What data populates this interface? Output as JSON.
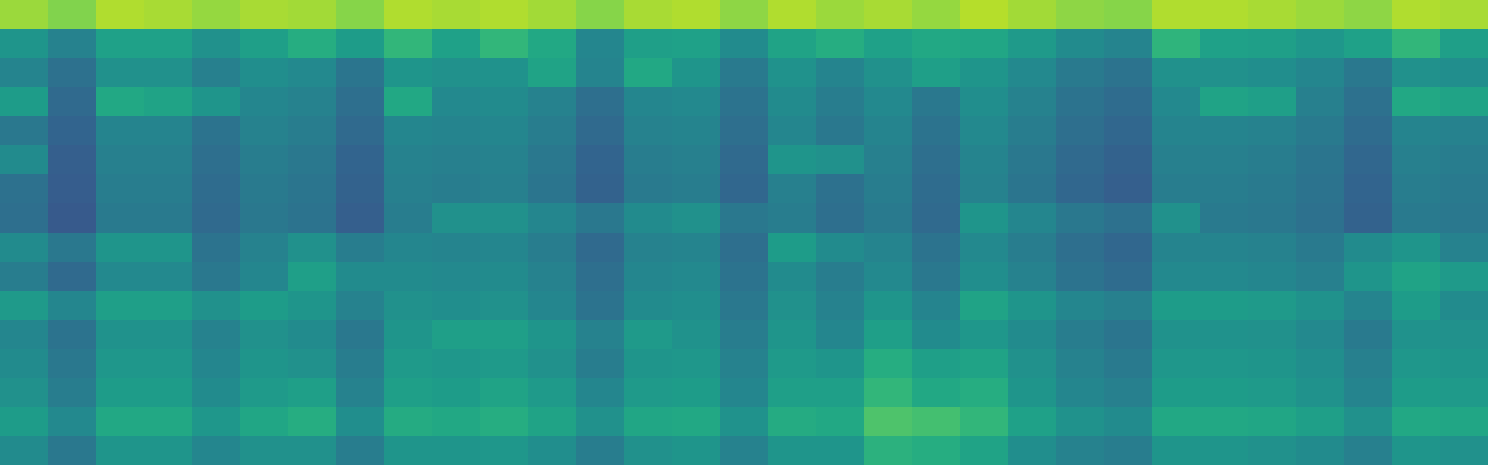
{
  "chart_data": {
    "type": "heatmap",
    "color": "viridis",
    "tick_labels": false,
    "zlim": [
      0,
      1
    ],
    "z": [
      [
        0.85,
        0.81,
        0.88,
        0.87,
        0.84,
        0.87,
        0.86,
        0.82,
        0.88,
        0.87,
        0.88,
        0.86,
        0.82,
        0.87,
        0.88,
        0.83,
        0.88,
        0.85,
        0.87,
        0.84,
        0.89,
        0.86,
        0.83,
        0.82,
        0.88,
        0.88,
        0.87,
        0.85,
        0.83,
        0.88,
        0.87
      ],
      [
        0.52,
        0.44,
        0.57,
        0.57,
        0.5,
        0.56,
        0.62,
        0.55,
        0.66,
        0.57,
        0.66,
        0.6,
        0.46,
        0.56,
        0.57,
        0.48,
        0.58,
        0.62,
        0.57,
        0.6,
        0.59,
        0.54,
        0.48,
        0.45,
        0.65,
        0.57,
        0.56,
        0.53,
        0.57,
        0.66,
        0.56
      ],
      [
        0.45,
        0.37,
        0.5,
        0.5,
        0.43,
        0.49,
        0.47,
        0.39,
        0.52,
        0.5,
        0.51,
        0.58,
        0.45,
        0.6,
        0.52,
        0.41,
        0.51,
        0.45,
        0.5,
        0.56,
        0.52,
        0.47,
        0.41,
        0.38,
        0.5,
        0.5,
        0.49,
        0.46,
        0.4,
        0.5,
        0.49
      ],
      [
        0.55,
        0.34,
        0.6,
        0.58,
        0.52,
        0.46,
        0.44,
        0.36,
        0.6,
        0.47,
        0.48,
        0.44,
        0.36,
        0.46,
        0.47,
        0.38,
        0.48,
        0.42,
        0.47,
        0.4,
        0.49,
        0.44,
        0.38,
        0.35,
        0.47,
        0.58,
        0.56,
        0.43,
        0.37,
        0.6,
        0.58
      ],
      [
        0.4,
        0.32,
        0.45,
        0.45,
        0.38,
        0.44,
        0.42,
        0.34,
        0.46,
        0.45,
        0.46,
        0.42,
        0.34,
        0.44,
        0.45,
        0.36,
        0.46,
        0.4,
        0.45,
        0.38,
        0.47,
        0.42,
        0.36,
        0.33,
        0.45,
        0.45,
        0.44,
        0.41,
        0.35,
        0.45,
        0.44
      ],
      [
        0.48,
        0.3,
        0.43,
        0.43,
        0.36,
        0.42,
        0.4,
        0.32,
        0.44,
        0.43,
        0.44,
        0.4,
        0.32,
        0.42,
        0.43,
        0.34,
        0.52,
        0.5,
        0.43,
        0.36,
        0.45,
        0.4,
        0.34,
        0.31,
        0.43,
        0.43,
        0.42,
        0.39,
        0.33,
        0.43,
        0.42
      ],
      [
        0.37,
        0.29,
        0.42,
        0.42,
        0.35,
        0.41,
        0.39,
        0.31,
        0.43,
        0.42,
        0.43,
        0.39,
        0.31,
        0.41,
        0.42,
        0.33,
        0.43,
        0.37,
        0.42,
        0.35,
        0.44,
        0.39,
        0.33,
        0.3,
        0.42,
        0.42,
        0.41,
        0.38,
        0.32,
        0.42,
        0.41
      ],
      [
        0.36,
        0.28,
        0.41,
        0.41,
        0.34,
        0.4,
        0.38,
        0.3,
        0.42,
        0.5,
        0.5,
        0.46,
        0.4,
        0.48,
        0.5,
        0.4,
        0.42,
        0.36,
        0.41,
        0.34,
        0.52,
        0.46,
        0.4,
        0.37,
        0.5,
        0.41,
        0.4,
        0.37,
        0.31,
        0.41,
        0.4
      ],
      [
        0.48,
        0.4,
        0.52,
        0.52,
        0.38,
        0.44,
        0.5,
        0.42,
        0.46,
        0.45,
        0.46,
        0.42,
        0.34,
        0.44,
        0.45,
        0.36,
        0.55,
        0.48,
        0.45,
        0.38,
        0.47,
        0.42,
        0.36,
        0.33,
        0.45,
        0.45,
        0.44,
        0.41,
        0.48,
        0.52,
        0.44
      ],
      [
        0.42,
        0.34,
        0.47,
        0.47,
        0.4,
        0.46,
        0.56,
        0.48,
        0.48,
        0.47,
        0.48,
        0.44,
        0.36,
        0.46,
        0.47,
        0.38,
        0.48,
        0.42,
        0.47,
        0.4,
        0.49,
        0.44,
        0.38,
        0.35,
        0.47,
        0.47,
        0.46,
        0.43,
        0.52,
        0.58,
        0.54
      ],
      [
        0.54,
        0.46,
        0.56,
        0.56,
        0.5,
        0.55,
        0.52,
        0.44,
        0.5,
        0.49,
        0.5,
        0.46,
        0.38,
        0.48,
        0.49,
        0.4,
        0.5,
        0.44,
        0.52,
        0.45,
        0.58,
        0.52,
        0.46,
        0.43,
        0.55,
        0.55,
        0.54,
        0.51,
        0.45,
        0.55,
        0.48
      ],
      [
        0.46,
        0.38,
        0.51,
        0.51,
        0.44,
        0.5,
        0.48,
        0.4,
        0.52,
        0.56,
        0.56,
        0.52,
        0.44,
        0.54,
        0.51,
        0.42,
        0.52,
        0.46,
        0.56,
        0.48,
        0.53,
        0.48,
        0.42,
        0.39,
        0.51,
        0.51,
        0.5,
        0.47,
        0.41,
        0.51,
        0.5
      ],
      [
        0.48,
        0.4,
        0.53,
        0.53,
        0.46,
        0.52,
        0.5,
        0.42,
        0.54,
        0.53,
        0.54,
        0.5,
        0.42,
        0.52,
        0.53,
        0.44,
        0.54,
        0.52,
        0.62,
        0.56,
        0.58,
        0.5,
        0.44,
        0.41,
        0.53,
        0.53,
        0.52,
        0.49,
        0.43,
        0.53,
        0.52
      ],
      [
        0.5,
        0.42,
        0.55,
        0.55,
        0.48,
        0.54,
        0.56,
        0.44,
        0.56,
        0.55,
        0.58,
        0.54,
        0.46,
        0.54,
        0.55,
        0.46,
        0.56,
        0.56,
        0.66,
        0.6,
        0.62,
        0.52,
        0.46,
        0.43,
        0.55,
        0.55,
        0.54,
        0.51,
        0.45,
        0.55,
        0.54
      ],
      [
        0.55,
        0.47,
        0.6,
        0.6,
        0.53,
        0.59,
        0.62,
        0.49,
        0.61,
        0.6,
        0.62,
        0.58,
        0.5,
        0.59,
        0.6,
        0.51,
        0.61,
        0.6,
        0.72,
        0.7,
        0.66,
        0.57,
        0.51,
        0.48,
        0.6,
        0.6,
        0.59,
        0.56,
        0.5,
        0.6,
        0.59
      ],
      [
        0.48,
        0.4,
        0.52,
        0.52,
        0.46,
        0.5,
        0.5,
        0.42,
        0.52,
        0.52,
        0.53,
        0.49,
        0.42,
        0.5,
        0.52,
        0.44,
        0.52,
        0.52,
        0.64,
        0.62,
        0.58,
        0.49,
        0.44,
        0.42,
        0.52,
        0.52,
        0.5,
        0.48,
        0.43,
        0.52,
        0.5
      ]
    ]
  }
}
